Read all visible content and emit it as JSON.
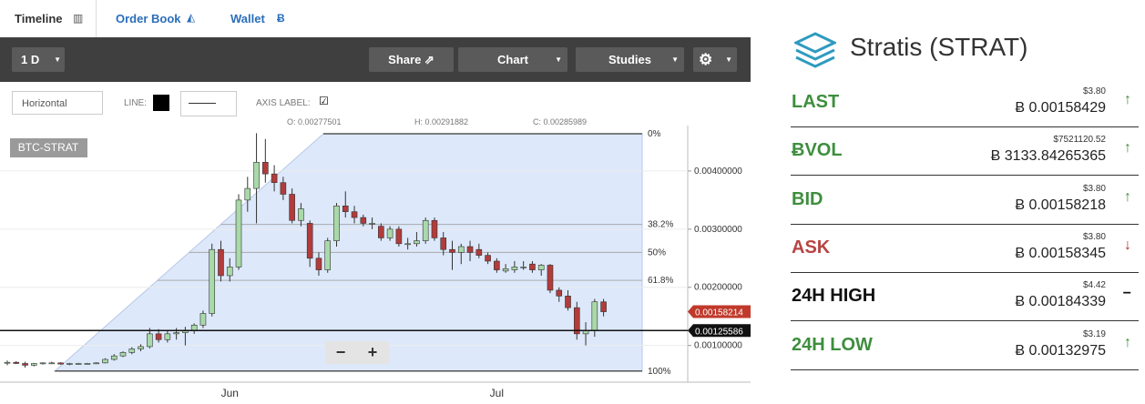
{
  "tabs": [
    "Timeline",
    "Order Book",
    "Wallet"
  ],
  "toolbar": {
    "period": "1 D",
    "share": "Share",
    "chart": "Chart",
    "studies": "Studies"
  },
  "drawing_toolbar": {
    "tool": "Horizontal",
    "line": "LINE:",
    "axis_label": "AXIS LABEL:"
  },
  "ohlc_header": {
    "o": "O: 0.00277501",
    "h": "H: 0.00291882",
    "c": "C: 0.00285989"
  },
  "chart_data": {
    "type": "candlestick",
    "symbol": "BTC-STRAT",
    "categories": [
      null,
      null,
      null,
      null,
      null,
      null,
      null,
      null,
      null,
      null,
      null,
      null,
      null,
      null,
      null,
      null,
      null,
      null,
      null,
      null,
      null,
      null,
      null,
      null,
      null,
      "Jun",
      null,
      null,
      null,
      null,
      null,
      null,
      null,
      null,
      null,
      null,
      null,
      null,
      null,
      null,
      null,
      null,
      null,
      null,
      null,
      null,
      null,
      null,
      null,
      null,
      null,
      null,
      null,
      null,
      null,
      "Jul",
      null,
      null,
      null,
      null,
      null,
      null,
      null,
      null,
      null,
      null,
      null,
      null
    ],
    "ohlc": [
      [
        0.0007,
        0.00074,
        0.00066,
        0.00071
      ],
      [
        0.00071,
        0.00073,
        0.00068,
        0.00069
      ],
      [
        0.00069,
        0.00072,
        0.00062,
        0.00066
      ],
      [
        0.00066,
        0.0007,
        0.00064,
        0.00069
      ],
      [
        0.00069,
        0.00071,
        0.00067,
        0.0007
      ],
      [
        0.0007,
        0.00072,
        0.00068,
        0.0007
      ],
      [
        0.0007,
        0.00071,
        0.00067,
        0.00068
      ],
      [
        0.00068,
        0.0007,
        0.00066,
        0.00069
      ],
      [
        0.00069,
        0.0007,
        0.00067,
        0.00069
      ],
      [
        0.00069,
        0.0007,
        0.00068,
        0.00069
      ],
      [
        0.00069,
        0.00071,
        0.00068,
        0.0007
      ],
      [
        0.0007,
        0.00078,
        0.00069,
        0.00076
      ],
      [
        0.00076,
        0.00085,
        0.00074,
        0.00082
      ],
      [
        0.00082,
        0.0009,
        0.0008,
        0.00088
      ],
      [
        0.00088,
        0.00097,
        0.00085,
        0.00094
      ],
      [
        0.00094,
        0.00102,
        0.0009,
        0.00098
      ],
      [
        0.00098,
        0.0013,
        0.00095,
        0.0012
      ],
      [
        0.0012,
        0.00128,
        0.00105,
        0.0011
      ],
      [
        0.0011,
        0.00125,
        0.00105,
        0.0012
      ],
      [
        0.0012,
        0.0013,
        0.0011,
        0.00122
      ],
      [
        0.00122,
        0.00132,
        0.001,
        0.00125
      ],
      [
        0.00125,
        0.00138,
        0.0012,
        0.00135
      ],
      [
        0.00135,
        0.0016,
        0.0013,
        0.00155
      ],
      [
        0.00155,
        0.00275,
        0.0015,
        0.00265
      ],
      [
        0.00265,
        0.0028,
        0.0021,
        0.0022
      ],
      [
        0.0022,
        0.0025,
        0.0021,
        0.00235
      ],
      [
        0.00235,
        0.0036,
        0.0023,
        0.0035
      ],
      [
        0.0035,
        0.0039,
        0.0033,
        0.0037
      ],
      [
        0.0037,
        0.00465,
        0.0031,
        0.00415
      ],
      [
        0.00415,
        0.00455,
        0.0038,
        0.00395
      ],
      [
        0.00395,
        0.0041,
        0.00365,
        0.0038
      ],
      [
        0.0038,
        0.0039,
        0.0035,
        0.0036
      ],
      [
        0.0036,
        0.0037,
        0.0031,
        0.00315
      ],
      [
        0.00315,
        0.00345,
        0.00305,
        0.00335
      ],
      [
        0.0031,
        0.00315,
        0.00235,
        0.0025
      ],
      [
        0.0025,
        0.0026,
        0.0022,
        0.0023
      ],
      [
        0.0023,
        0.00285,
        0.00225,
        0.0028
      ],
      [
        0.0028,
        0.00345,
        0.0027,
        0.0034
      ],
      [
        0.0034,
        0.00365,
        0.0032,
        0.0033
      ],
      [
        0.0033,
        0.0034,
        0.0031,
        0.0032
      ],
      [
        0.0032,
        0.00325,
        0.00305,
        0.0031
      ],
      [
        0.0031,
        0.0032,
        0.003,
        0.0031
      ],
      [
        0.00305,
        0.0031,
        0.0028,
        0.00285
      ],
      [
        0.00285,
        0.00305,
        0.0028,
        0.003
      ],
      [
        0.003,
        0.00305,
        0.0027,
        0.00275
      ],
      [
        0.00275,
        0.00285,
        0.00265,
        0.00275
      ],
      [
        0.00275,
        0.00295,
        0.0027,
        0.0028
      ],
      [
        0.0028,
        0.0032,
        0.00275,
        0.00315
      ],
      [
        0.00315,
        0.0032,
        0.0028,
        0.00285
      ],
      [
        0.00285,
        0.00295,
        0.00255,
        0.00265
      ],
      [
        0.00265,
        0.0028,
        0.0023,
        0.0026
      ],
      [
        0.0026,
        0.00275,
        0.0024,
        0.0027
      ],
      [
        0.0027,
        0.0028,
        0.00245,
        0.0026
      ],
      [
        0.00265,
        0.00275,
        0.0025,
        0.00255
      ],
      [
        0.00255,
        0.0026,
        0.0024,
        0.00245
      ],
      [
        0.00245,
        0.0025,
        0.00225,
        0.0023
      ],
      [
        0.00228,
        0.0024,
        0.00225,
        0.00232
      ],
      [
        0.0023,
        0.00245,
        0.00225,
        0.00235
      ],
      [
        0.00235,
        0.00245,
        0.0023,
        0.00235
      ],
      [
        0.0024,
        0.00245,
        0.00225,
        0.0023
      ],
      [
        0.0023,
        0.0024,
        0.0022,
        0.00238
      ],
      [
        0.00238,
        0.0024,
        0.0019,
        0.00195
      ],
      [
        0.00195,
        0.002,
        0.00175,
        0.00185
      ],
      [
        0.00185,
        0.00195,
        0.0016,
        0.00165
      ],
      [
        0.00165,
        0.00175,
        0.0011,
        0.0012
      ],
      [
        0.0012,
        0.0014,
        0.001,
        0.00125
      ],
      [
        0.00125,
        0.0018,
        0.00115,
        0.00175
      ],
      [
        0.00175,
        0.0018,
        0.0015,
        0.00158
      ]
    ],
    "ylim": [
      0.0004,
      0.00475
    ],
    "yticks": [
      {
        "value": 0.004,
        "label": "0.00400000"
      },
      {
        "value": 0.003,
        "label": "0.00300000"
      },
      {
        "value": 0.002,
        "label": "0.00200000"
      },
      {
        "value": 0.001,
        "label": "0.00100000"
      }
    ],
    "fibonacci": {
      "high": 0.00464,
      "low": 0.00056,
      "levels": [
        {
          "value": 0,
          "label": "0%"
        },
        {
          "value": 38.2,
          "label": "38.2%"
        },
        {
          "value": 50,
          "label": "50%"
        },
        {
          "value": 61.8,
          "label": "61.8%"
        },
        {
          "value": 100,
          "label": "100%"
        }
      ]
    },
    "price_tags": [
      {
        "value": 0.00158214,
        "color": "#c0392b"
      },
      {
        "value": 0.00125586,
        "color": "#111111"
      }
    ],
    "up_color": "#a9d9a9",
    "down_color": "#b23b3b",
    "grid": true
  },
  "zoom": [
    "−",
    "+"
  ],
  "ticker": {
    "title": "Stratis (STRAT)",
    "rows": [
      {
        "label": "LAST",
        "usd": "$3.80",
        "btc": "Ƀ 0.00158429"
      },
      {
        "label": "ɃVOL",
        "usd": "$7521120.52",
        "btc": "Ƀ 3133.84265365"
      },
      {
        "label": "BID",
        "usd": "$3.80",
        "btc": "Ƀ 0.00158218"
      },
      {
        "label": "ASK",
        "usd": "$3.80",
        "btc": "Ƀ 0.00158345"
      },
      {
        "label": "24H HIGH",
        "usd": "$4.42",
        "btc": "Ƀ 0.00184339"
      },
      {
        "label": "24H LOW",
        "usd": "$3.19",
        "btc": "Ƀ 0.00132975"
      }
    ]
  }
}
